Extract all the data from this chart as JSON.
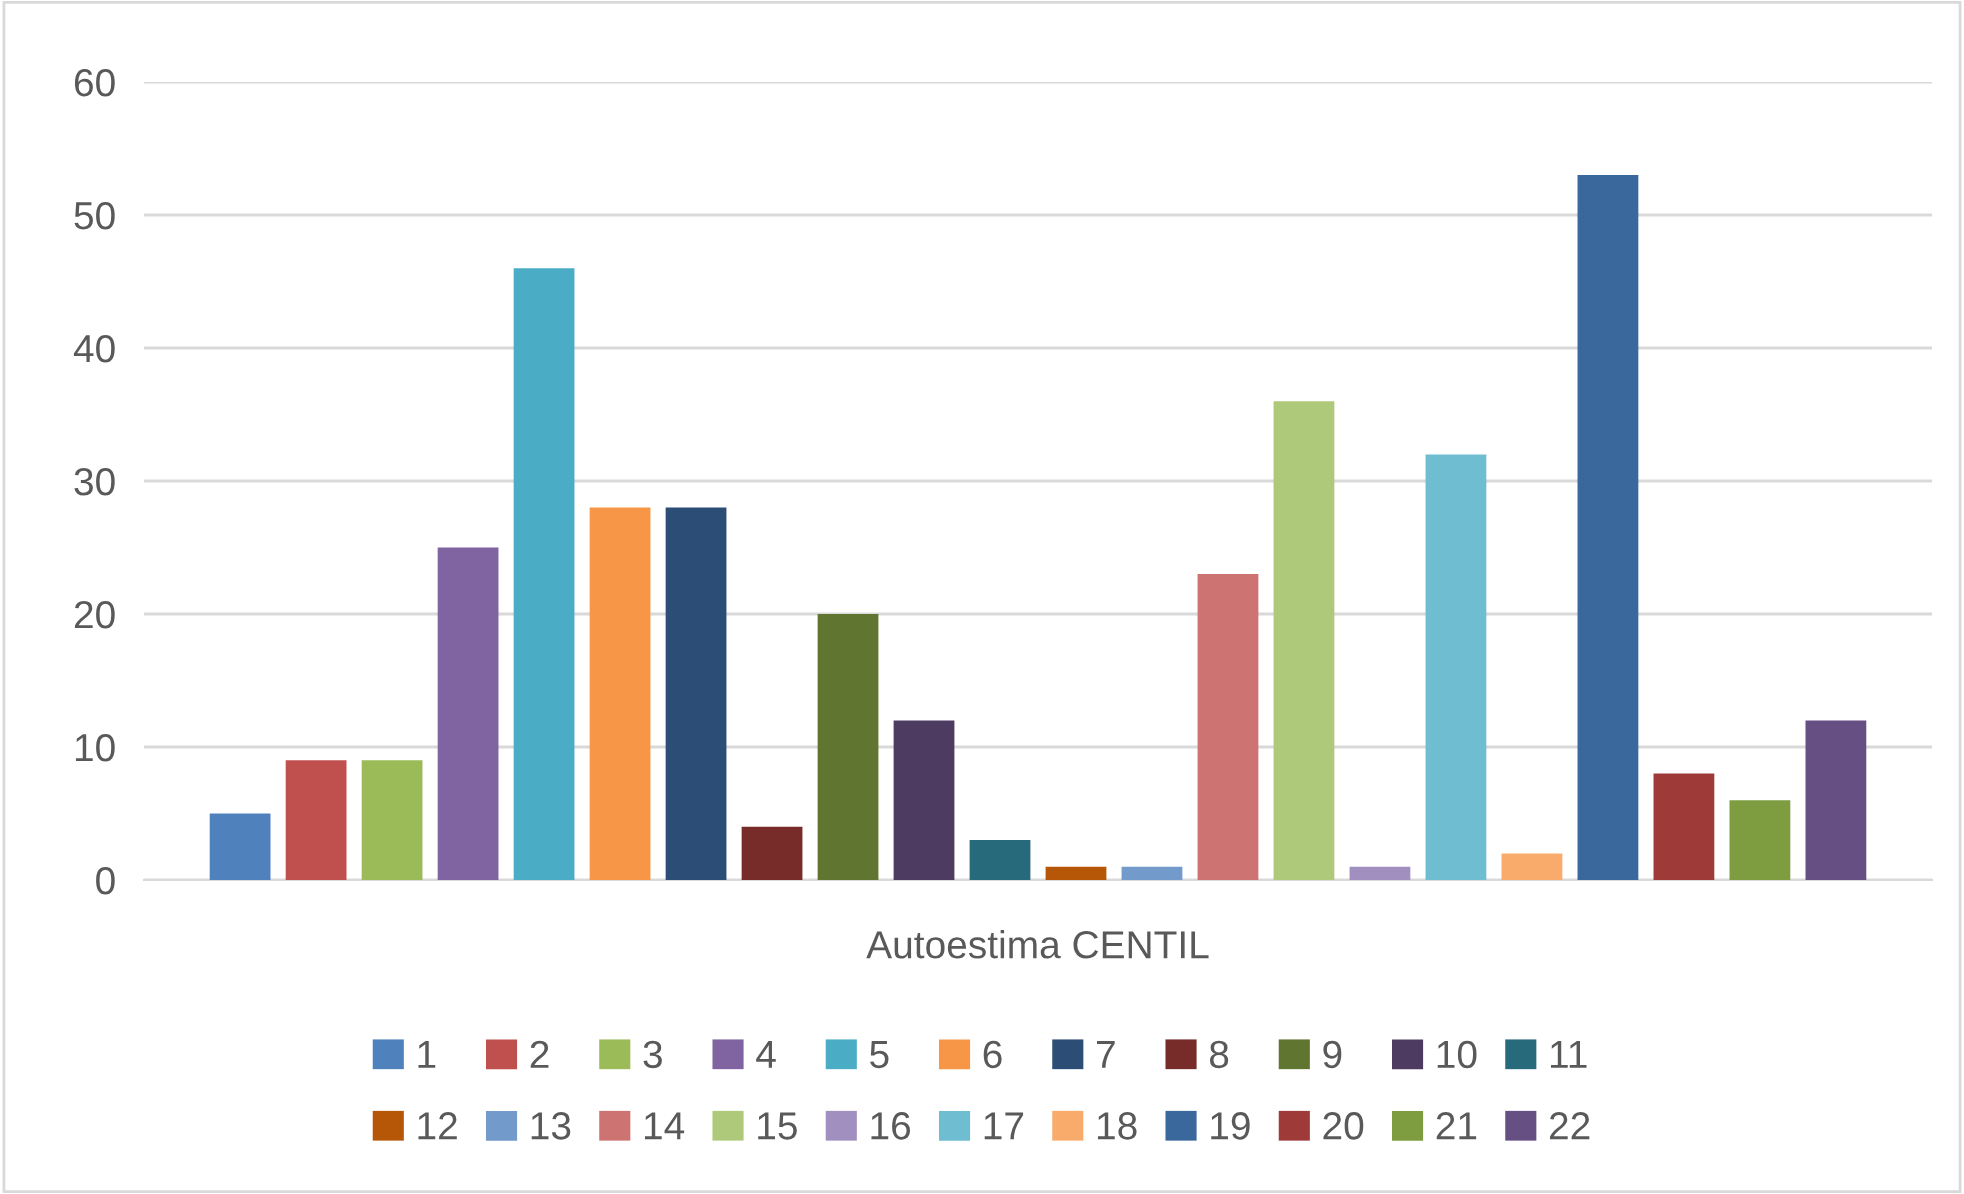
{
  "chart_data": {
    "type": "bar",
    "categories": [
      "Autoestima CENTIL"
    ],
    "series": [
      {
        "name": "1",
        "color": "#4f81bd",
        "values": [
          5
        ]
      },
      {
        "name": "2",
        "color": "#c0504d",
        "values": [
          9
        ]
      },
      {
        "name": "3",
        "color": "#9bbb59",
        "values": [
          9
        ]
      },
      {
        "name": "4",
        "color": "#8064a2",
        "values": [
          25
        ]
      },
      {
        "name": "5",
        "color": "#4bacc6",
        "values": [
          46
        ]
      },
      {
        "name": "6",
        "color": "#f79646",
        "values": [
          28
        ]
      },
      {
        "name": "7",
        "color": "#2c4d75",
        "values": [
          28
        ]
      },
      {
        "name": "8",
        "color": "#772c2a",
        "values": [
          4
        ]
      },
      {
        "name": "9",
        "color": "#5f7530",
        "values": [
          20
        ]
      },
      {
        "name": "10",
        "color": "#4d3b62",
        "values": [
          12
        ]
      },
      {
        "name": "11",
        "color": "#276a7c",
        "values": [
          3
        ]
      },
      {
        "name": "12",
        "color": "#b65708",
        "values": [
          1
        ]
      },
      {
        "name": "13",
        "color": "#729aca",
        "values": [
          1
        ]
      },
      {
        "name": "14",
        "color": "#cd7371",
        "values": [
          23
        ]
      },
      {
        "name": "15",
        "color": "#afc97a",
        "values": [
          36
        ]
      },
      {
        "name": "16",
        "color": "#a18fbf",
        "values": [
          1
        ]
      },
      {
        "name": "17",
        "color": "#6fbdd1",
        "values": [
          32
        ]
      },
      {
        "name": "18",
        "color": "#f9ab6b",
        "values": [
          2
        ]
      },
      {
        "name": "19",
        "color": "#3a679c",
        "values": [
          53
        ]
      },
      {
        "name": "20",
        "color": "#9e3b38",
        "values": [
          8
        ]
      },
      {
        "name": "21",
        "color": "#7e9c40",
        "values": [
          6
        ]
      },
      {
        "name": "22",
        "color": "#664f83",
        "values": [
          12
        ]
      }
    ],
    "ylim": [
      0,
      60
    ],
    "yticks": [
      0,
      10,
      20,
      30,
      40,
      50,
      60
    ],
    "grid": "y",
    "legend": "bottom"
  }
}
